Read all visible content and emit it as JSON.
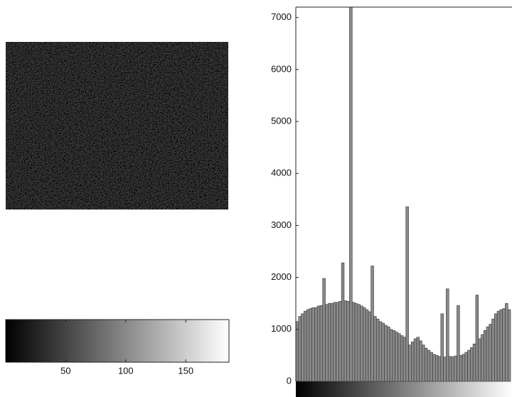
{
  "chart_data": [
    {
      "type": "colorbar",
      "xlim": [
        0,
        186
      ],
      "xticks": [
        50,
        100,
        150
      ]
    },
    {
      "type": "bar",
      "color": "#8a8a8a",
      "ylim": [
        0,
        7200
      ],
      "yticks": [
        0,
        1000,
        2000,
        3000,
        4000,
        5000,
        6000,
        7000
      ],
      "values": [
        1150,
        1250,
        1300,
        1350,
        1380,
        1400,
        1420,
        1420,
        1450,
        1460,
        1980,
        1480,
        1500,
        1500,
        1520,
        1520,
        1540,
        2280,
        1550,
        1540,
        7200,
        1520,
        1500,
        1480,
        1450,
        1420,
        1380,
        1340,
        2220,
        1250,
        1200,
        1150,
        1120,
        1080,
        1050,
        1000,
        980,
        950,
        920,
        880,
        850,
        3360,
        700,
        760,
        820,
        850,
        780,
        700,
        640,
        600,
        560,
        520,
        500,
        480,
        1300,
        470,
        1780,
        480,
        470,
        490,
        1460,
        500,
        520,
        560,
        600,
        650,
        720,
        1660,
        820,
        900,
        980,
        1050,
        1100,
        1200,
        1300,
        1350,
        1380,
        1400,
        1500,
        1380
      ]
    }
  ]
}
